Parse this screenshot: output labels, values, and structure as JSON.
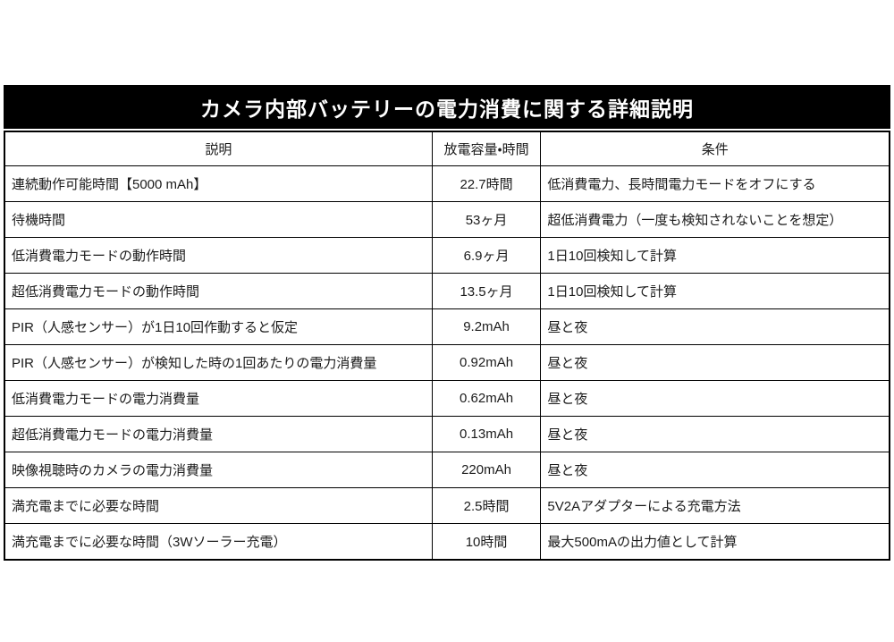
{
  "title": "カメラ内部バッテリーの電力消費に関する詳細説明",
  "colors": {
    "title_bar_bg": "#000000",
    "title_bar_text": "#ffffff",
    "table_border": "#000000",
    "body_text": "#1b1b1b",
    "background": "#ffffff"
  },
  "chart_data": {
    "type": "table",
    "title": "カメラ内部バッテリーの電力消費に関する詳細説明",
    "columns": [
      "説明",
      "放電容量・時間",
      "条件"
    ],
    "rows": [
      [
        "連続動作可能時間【5000 mAh】",
        "22.7時間",
        "低消費電力、長時間電力モードをオフにする"
      ],
      [
        "待機時間",
        "53ヶ月",
        "超低消費電力（一度も検知されないことを想定）"
      ],
      [
        "低消費電力モードの動作時間",
        "6.9ヶ月",
        "1日10回検知して計算"
      ],
      [
        "超低消費電力モードの動作時間",
        "13.5ヶ月",
        "1日10回検知して計算"
      ],
      [
        "PIR（人感センサー）が1日10回作動すると仮定",
        "9.2mAh",
        "昼と夜"
      ],
      [
        "PIR（人感センサー）が検知した時の1回あたりの電力消費量",
        "0.92mAh",
        "昼と夜"
      ],
      [
        "低消費電力モードの電力消費量",
        "0.62mAh",
        "昼と夜"
      ],
      [
        "超低消費電力モードの電力消費量",
        "0.13mAh",
        "昼と夜"
      ],
      [
        "映像視聴時のカメラの電力消費量",
        "220mAh",
        "昼と夜"
      ],
      [
        "満充電までに必要な時間",
        "2.5時間",
        "5V2Aアダプターによる充電方法"
      ],
      [
        "満充電までに必要な時間（3Wソーラー充電）",
        "10時間",
        "最大500mAの出力値として計算"
      ]
    ]
  }
}
